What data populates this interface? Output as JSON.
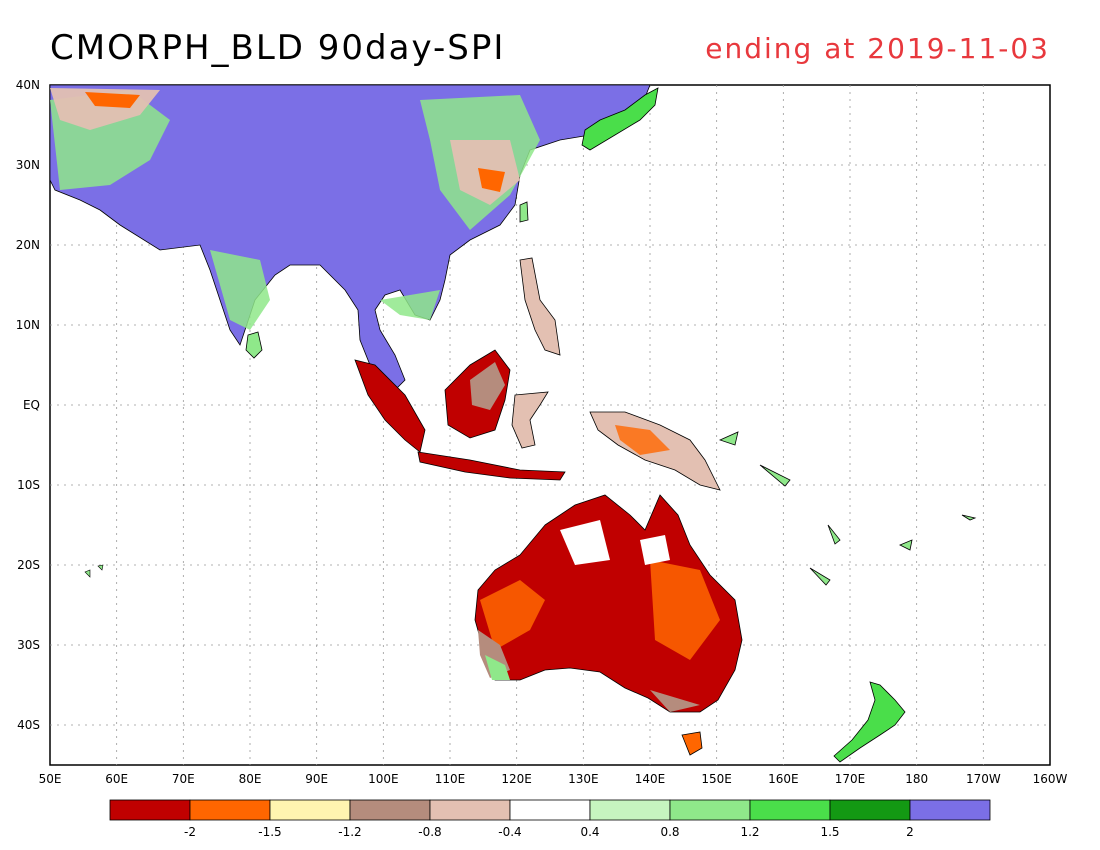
{
  "title": "CMORPH_BLD 90day-SPI",
  "subtitle": "ending at 2019-11-03",
  "colors": {
    "subtitle": "#e8383d"
  },
  "lat_labels": [
    "40N",
    "30N",
    "20N",
    "10N",
    "EQ",
    "10S",
    "20S",
    "30S",
    "40S"
  ],
  "lon_labels": [
    "50E",
    "60E",
    "70E",
    "80E",
    "90E",
    "100E",
    "110E",
    "120E",
    "130E",
    "140E",
    "150E",
    "160E",
    "170E",
    "180",
    "170W",
    "160W"
  ],
  "colorbar": {
    "colors": [
      "#c00000",
      "#ff6600",
      "#fff5b0",
      "#b58c7d",
      "#e3c0b2",
      "#ffffff",
      "#c6f5bf",
      "#8fe88a",
      "#4ade4a",
      "#139913",
      "#7b6fe6"
    ],
    "labels": [
      "-2",
      "-1.5",
      "-1.2",
      "-0.8",
      "-0.4",
      "0.4",
      "0.8",
      "1.2",
      "1.5",
      "2"
    ]
  }
}
